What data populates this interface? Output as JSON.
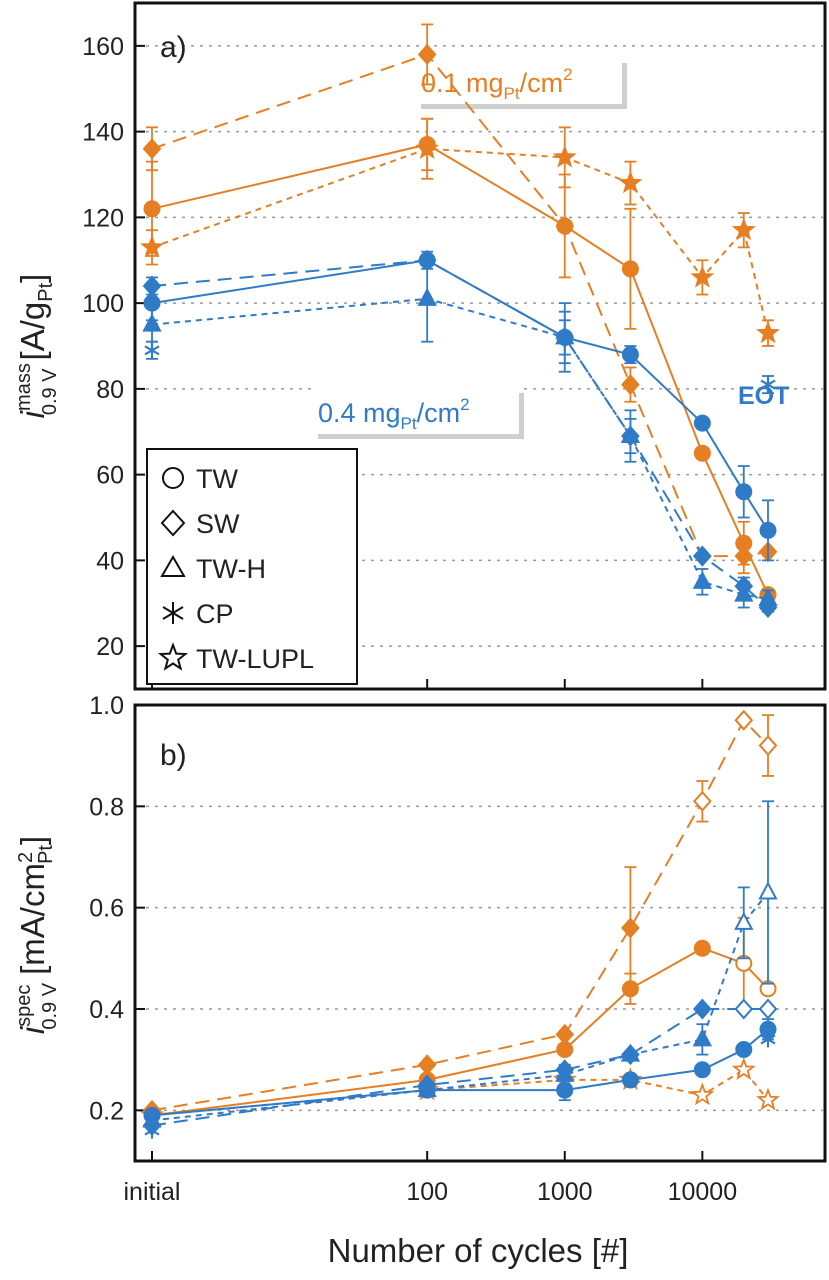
{
  "colors": {
    "orange": "#E67E22",
    "blue": "#2F7BC7"
  },
  "shared": {
    "x_tick_labels": [
      "initial",
      "100",
      "1000",
      "10000"
    ],
    "xlabel": "Number of cycles [#]"
  },
  "legend": {
    "items": [
      {
        "marker": "circle",
        "label": "TW"
      },
      {
        "marker": "diamond",
        "label": "SW"
      },
      {
        "marker": "triangle",
        "label": "TW-H"
      },
      {
        "marker": "asterisk",
        "label": "CP"
      },
      {
        "marker": "star",
        "label": "TW-LUPL"
      }
    ]
  },
  "annotations": {
    "orange": {
      "main": "0.1 mg",
      "sub": "Pt",
      "unit": "/cm",
      "sup": "2"
    },
    "blue": {
      "main": "0.4 mg",
      "sub": "Pt",
      "unit": "/cm",
      "sup": "2"
    },
    "eot": "EOT"
  },
  "labels": {
    "a": {
      "panel": "a)",
      "ylabel_i": "i",
      "ylabel_sup": "mass",
      "ylabel_sub": "0.9 V",
      "ylabel_unit": "[A/g",
      "ylabel_unit_sub": "Pt",
      "ylabel_close": "]"
    },
    "b": {
      "panel": "b)",
      "ylabel_i": "i",
      "ylabel_sup": "spec",
      "ylabel_sub": "0.9 V",
      "ylabel_unit": "[mA/cm",
      "ylabel_unit_sup": "2",
      "ylabel_unit_sub": "Pt",
      "ylabel_close": "]"
    }
  },
  "chart_data": [
    {
      "type": "line",
      "panel": "a)",
      "xscale": "log (cycles), 'initial' plotted at ~1",
      "ylim": [
        10,
        170
      ],
      "yticks": [
        "20",
        "40",
        "60",
        "80",
        "100",
        "120",
        "140",
        "160"
      ],
      "x_positions": {
        "initial": 1,
        "100": 100,
        "1000": 1000,
        "3000": 3000,
        "10000": 10000,
        "20000": 20000,
        "30000": 30000
      },
      "series": [
        {
          "name": "TW 0.1",
          "marker": "circle",
          "color": "orange",
          "dash": "solid",
          "points": [
            [
              "initial",
              122,
              11
            ],
            [
              "100",
              137,
              6
            ],
            [
              "1000",
              118,
              12
            ],
            [
              "3000",
              108,
              14
            ],
            [
              "10000",
              65,
              0
            ],
            [
              "20000",
              44,
              5
            ],
            [
              "30000",
              32,
              0
            ]
          ]
        },
        {
          "name": "SW 0.1",
          "marker": "diamond",
          "color": "orange",
          "dash": "long",
          "points": [
            [
              "initial",
              136,
              5
            ],
            [
              "100",
              158,
              7
            ],
            [
              "1000",
              118,
              0
            ],
            [
              "3000",
              81,
              4
            ],
            [
              "10000",
              41,
              0
            ],
            [
              "20000",
              41,
              4
            ],
            [
              "30000",
              42,
              0
            ]
          ]
        },
        {
          "name": "TW-LUPL 0.1",
          "marker": "star",
          "color": "orange",
          "dash": "short",
          "points": [
            [
              "initial",
              113,
              4
            ],
            [
              "100",
              136,
              7
            ],
            [
              "1000",
              134,
              7
            ],
            [
              "3000",
              128,
              5
            ],
            [
              "10000",
              106,
              4
            ],
            [
              "20000",
              117,
              4
            ],
            [
              "30000",
              93,
              3
            ]
          ]
        },
        {
          "name": "TW 0.4",
          "marker": "circle",
          "color": "blue",
          "dash": "solid",
          "points": [
            [
              "initial",
              100,
              4
            ],
            [
              "100",
              110,
              2
            ],
            [
              "1000",
              92,
              4
            ],
            [
              "3000",
              88,
              2
            ],
            [
              "10000",
              72,
              1
            ],
            [
              "20000",
              56,
              6
            ],
            [
              "30000",
              47,
              7
            ]
          ]
        },
        {
          "name": "SW 0.4",
          "marker": "diamond",
          "color": "blue",
          "dash": "long",
          "points": [
            [
              "initial",
              104,
              2
            ],
            [
              "100",
              110,
              1
            ],
            [
              "1000",
              92,
              6
            ],
            [
              "3000",
              69,
              4
            ],
            [
              "10000",
              41,
              0
            ],
            [
              "20000",
              34,
              2
            ],
            [
              "30000",
              29,
              1
            ]
          ]
        },
        {
          "name": "TW-H 0.4",
          "marker": "triangle",
          "color": "blue",
          "dash": "short",
          "points": [
            [
              "initial",
              95,
              4
            ],
            [
              "100",
              101,
              10
            ],
            [
              "1000",
              92,
              8
            ],
            [
              "3000",
              69,
              6
            ],
            [
              "10000",
              35,
              3
            ],
            [
              "20000",
              32,
              3
            ],
            [
              "30000",
              31,
              2
            ]
          ]
        },
        {
          "name": "CP 0.4",
          "marker": "asterisk",
          "color": "blue",
          "dash": "none",
          "points": [
            [
              "initial",
              89,
              2
            ],
            [
              "30000",
              81,
              2
            ]
          ]
        }
      ]
    },
    {
      "type": "line",
      "panel": "b)",
      "xscale": "log (cycles), 'initial' plotted at ~1",
      "ylim": [
        0.1,
        1.0
      ],
      "yticks": [
        "0.2",
        "0.4",
        "0.6",
        "0.8",
        "1.0"
      ],
      "x_positions": {
        "initial": 1,
        "100": 100,
        "1000": 1000,
        "3000": 3000,
        "10000": 10000,
        "20000": 20000,
        "30000": 30000
      },
      "series": [
        {
          "name": "TW 0.1",
          "marker": "circle",
          "color": "orange",
          "dash": "solid",
          "points": [
            [
              "initial",
              0.19,
              0,
              "f"
            ],
            [
              "100",
              0.26,
              0,
              "f"
            ],
            [
              "1000",
              0.32,
              0,
              "f"
            ],
            [
              "3000",
              0.44,
              0.03,
              "f"
            ],
            [
              "10000",
              0.52,
              0,
              "f"
            ],
            [
              "20000",
              0.49,
              0.09,
              "o"
            ],
            [
              "30000",
              0.44,
              0,
              "o"
            ]
          ]
        },
        {
          "name": "SW 0.1",
          "marker": "diamond",
          "color": "orange",
          "dash": "long",
          "points": [
            [
              "initial",
              0.2,
              0,
              "f"
            ],
            [
              "100",
              0.29,
              0,
              "f"
            ],
            [
              "1000",
              0.35,
              0,
              "f"
            ],
            [
              "3000",
              0.56,
              0.12,
              "f"
            ],
            [
              "10000",
              0.81,
              0.04,
              "o"
            ],
            [
              "20000",
              0.97,
              0,
              "o"
            ],
            [
              "30000",
              0.92,
              0.06,
              "o"
            ]
          ]
        },
        {
          "name": "TW-LUPL 0.1",
          "marker": "star",
          "color": "orange",
          "dash": "short",
          "points": [
            [
              "initial",
              0.19,
              0,
              "o"
            ],
            [
              "100",
              0.24,
              0,
              "o"
            ],
            [
              "1000",
              0.26,
              0.02,
              "o"
            ],
            [
              "3000",
              0.26,
              0,
              "o"
            ],
            [
              "10000",
              0.23,
              0,
              "o"
            ],
            [
              "20000",
              0.28,
              0,
              "o"
            ],
            [
              "30000",
              0.22,
              0,
              "o"
            ]
          ]
        },
        {
          "name": "TW 0.4",
          "marker": "circle",
          "color": "blue",
          "dash": "solid",
          "points": [
            [
              "initial",
              0.19,
              0,
              "f"
            ],
            [
              "100",
              0.24,
              0,
              "f"
            ],
            [
              "1000",
              0.24,
              0.02,
              "f"
            ],
            [
              "3000",
              0.26,
              0,
              "f"
            ],
            [
              "10000",
              0.28,
              0,
              "f"
            ],
            [
              "20000",
              0.32,
              0,
              "f"
            ],
            [
              "30000",
              0.36,
              0.02,
              "f"
            ]
          ]
        },
        {
          "name": "SW 0.4",
          "marker": "diamond",
          "color": "blue",
          "dash": "long",
          "points": [
            [
              "initial",
              0.17,
              0,
              "f"
            ],
            [
              "100",
              0.25,
              0,
              "f"
            ],
            [
              "1000",
              0.28,
              0,
              "f"
            ],
            [
              "3000",
              0.31,
              0,
              "f"
            ],
            [
              "10000",
              0.4,
              0,
              "f"
            ],
            [
              "20000",
              0.4,
              0,
              "o"
            ],
            [
              "30000",
              0.4,
              0,
              "o"
            ]
          ]
        },
        {
          "name": "TW-H 0.4",
          "marker": "triangle",
          "color": "blue",
          "dash": "short",
          "points": [
            [
              "initial",
              0.18,
              0,
              "f"
            ],
            [
              "100",
              0.24,
              0,
              "f"
            ],
            [
              "1000",
              0.27,
              0.02,
              "f"
            ],
            [
              "3000",
              0.31,
              0,
              "f"
            ],
            [
              "10000",
              0.34,
              0.03,
              "f"
            ],
            [
              "20000",
              0.57,
              0.07,
              "o"
            ],
            [
              "30000",
              0.63,
              0.18,
              "o"
            ]
          ]
        },
        {
          "name": "CP 0.4",
          "marker": "asterisk",
          "color": "blue",
          "dash": "none",
          "points": [
            [
              "initial",
              0.16,
              0,
              "f"
            ],
            [
              "30000",
              0.34,
              0,
              "f"
            ]
          ]
        }
      ]
    }
  ]
}
